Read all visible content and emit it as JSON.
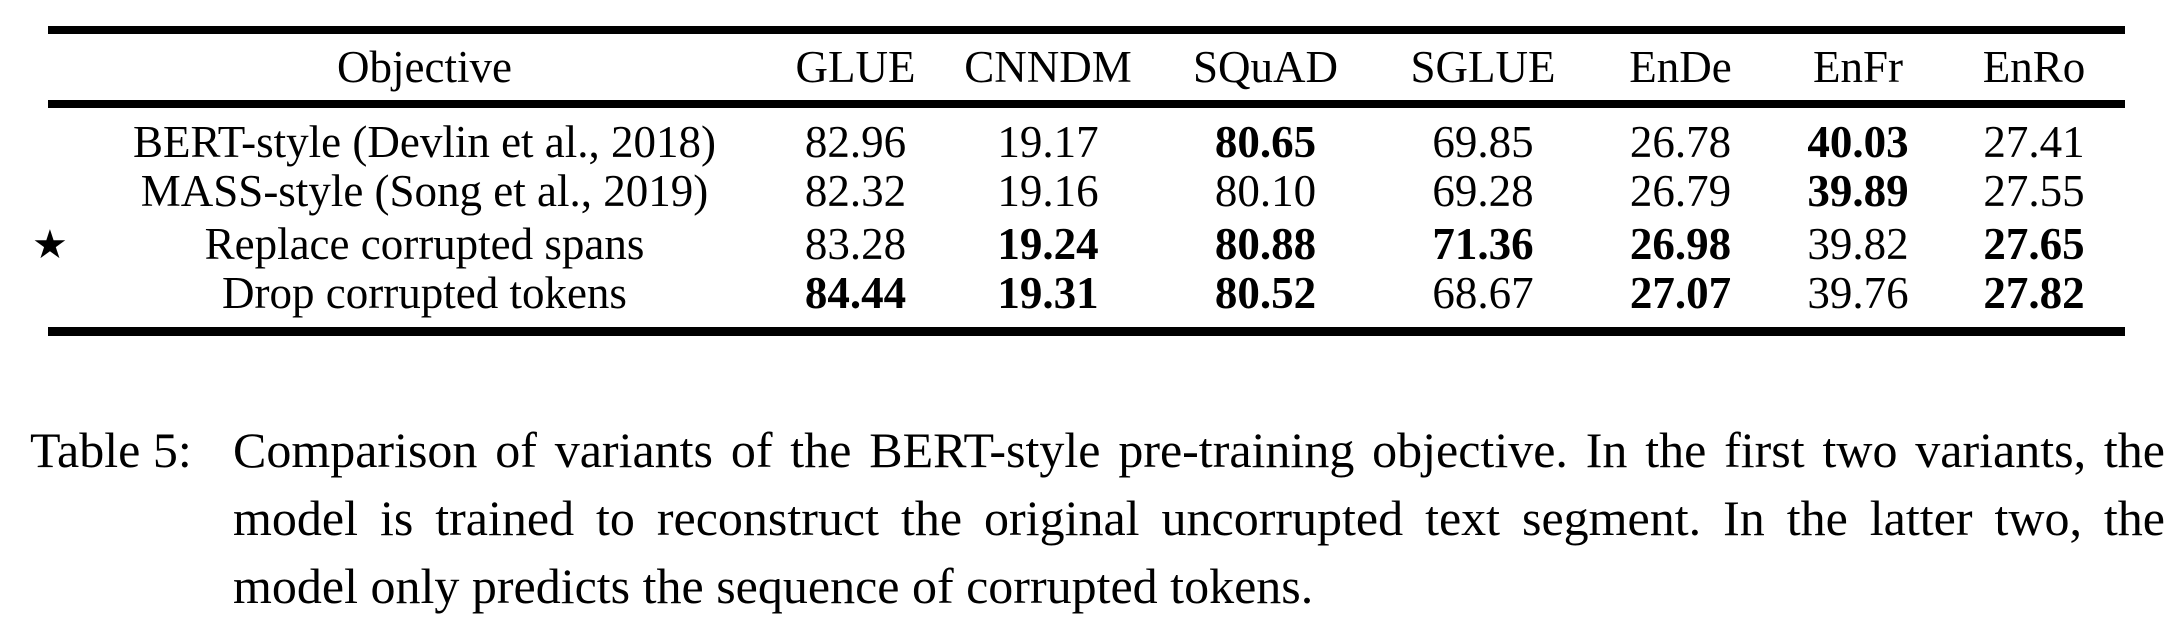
{
  "table": {
    "columns": [
      "Objective",
      "GLUE",
      "CNNDM",
      "SQuAD",
      "SGLUE",
      "EnDe",
      "EnFr",
      "EnRo"
    ],
    "rows": [
      {
        "star": false,
        "objective": "BERT-style (Devlin et al., 2018)",
        "values": [
          {
            "text": "82.96",
            "bold": false
          },
          {
            "text": "19.17",
            "bold": false
          },
          {
            "text": "80.65",
            "bold": true
          },
          {
            "text": "69.85",
            "bold": false
          },
          {
            "text": "26.78",
            "bold": false
          },
          {
            "text": "40.03",
            "bold": true
          },
          {
            "text": "27.41",
            "bold": false
          }
        ]
      },
      {
        "star": false,
        "objective": "MASS-style (Song et al., 2019)",
        "values": [
          {
            "text": "82.32",
            "bold": false
          },
          {
            "text": "19.16",
            "bold": false
          },
          {
            "text": "80.10",
            "bold": false
          },
          {
            "text": "69.28",
            "bold": false
          },
          {
            "text": "26.79",
            "bold": false
          },
          {
            "text": "39.89",
            "bold": true
          },
          {
            "text": "27.55",
            "bold": false
          }
        ]
      },
      {
        "star": true,
        "objective": "Replace corrupted spans",
        "values": [
          {
            "text": "83.28",
            "bold": false
          },
          {
            "text": "19.24",
            "bold": true
          },
          {
            "text": "80.88",
            "bold": true
          },
          {
            "text": "71.36",
            "bold": true
          },
          {
            "text": "26.98",
            "bold": true
          },
          {
            "text": "39.82",
            "bold": false
          },
          {
            "text": "27.65",
            "bold": true
          }
        ]
      },
      {
        "star": false,
        "objective": "Drop corrupted tokens",
        "values": [
          {
            "text": "84.44",
            "bold": true
          },
          {
            "text": "19.31",
            "bold": true
          },
          {
            "text": "80.52",
            "bold": true
          },
          {
            "text": "68.67",
            "bold": false
          },
          {
            "text": "27.07",
            "bold": true
          },
          {
            "text": "39.76",
            "bold": false
          },
          {
            "text": "27.82",
            "bold": true
          }
        ]
      }
    ]
  },
  "icons": {
    "star": "★"
  },
  "caption": {
    "label": "Table 5:",
    "text": "Comparison of variants of the BERT-style pre-training objective. In the first two variants, the model is trained to reconstruct the original uncorrupted text segment. In the latter two, the model only predicts the sequence of corrupted tokens."
  },
  "colors": {
    "text": "#000000",
    "background": "#ffffff"
  }
}
